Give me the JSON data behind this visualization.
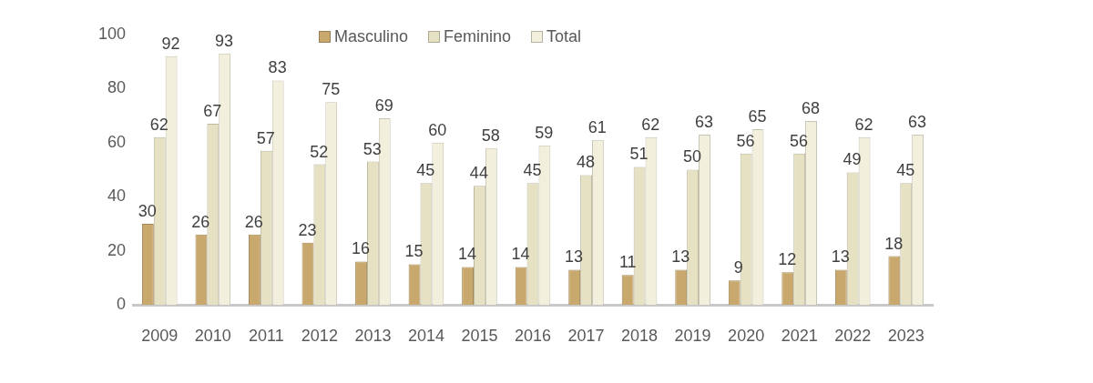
{
  "chart_data": {
    "type": "bar",
    "categories": [
      "2009",
      "2010",
      "2011",
      "2012",
      "2013",
      "2014",
      "2015",
      "2016",
      "2017",
      "2018",
      "2019",
      "2020",
      "2021",
      "2022",
      "2023"
    ],
    "series": [
      {
        "name": "Masculino",
        "color": "#c9a86e",
        "values": [
          30,
          26,
          26,
          23,
          16,
          15,
          14,
          14,
          13,
          11,
          13,
          9,
          12,
          13,
          18
        ]
      },
      {
        "name": "Feminino",
        "color": "#e6e1c3",
        "values": [
          62,
          67,
          57,
          52,
          53,
          45,
          44,
          45,
          48,
          51,
          50,
          56,
          56,
          49,
          45
        ]
      },
      {
        "name": "Total",
        "color": "#f2efdc",
        "values": [
          92,
          93,
          83,
          75,
          69,
          60,
          58,
          59,
          61,
          62,
          63,
          65,
          68,
          62,
          63
        ]
      }
    ],
    "ylim": [
      0,
      100
    ],
    "yticks": [
      0,
      20,
      40,
      60,
      80,
      100
    ],
    "legend": "top",
    "data_labels": true
  }
}
